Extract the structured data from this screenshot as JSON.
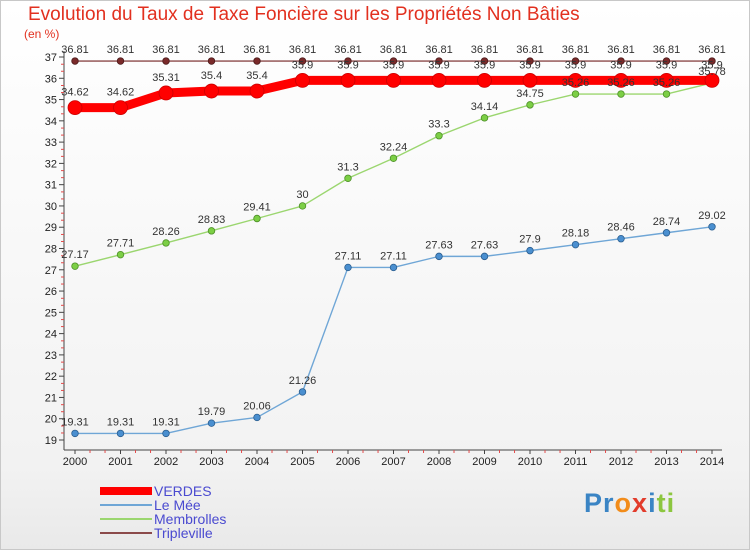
{
  "header": {
    "title": "Evolution du Taux de Taxe Foncière sur les Propriétés Non Bâties",
    "unit": "(en %)"
  },
  "chart_data": {
    "type": "line",
    "title": "Evolution du Taux de Taxe Foncière sur les Propriétés Non Bâties",
    "ylabel": "(en %)",
    "xlabel": "",
    "ylim": [
      19,
      37
    ],
    "yticks": [
      19,
      20,
      21,
      22,
      23,
      24,
      25,
      26,
      27,
      28,
      29,
      30,
      31,
      32,
      33,
      34,
      35,
      36,
      37
    ],
    "categories": [
      "2000",
      "2001",
      "2002",
      "2003",
      "2004",
      "2005",
      "2006",
      "2007",
      "2008",
      "2009",
      "2010",
      "2011",
      "2012",
      "2013",
      "2014"
    ],
    "grid": false,
    "legend": "bottom-left",
    "series": [
      {
        "name": "VERDES",
        "color": "#ff0000",
        "values": [
          34.62,
          34.62,
          35.31,
          35.4,
          35.4,
          35.9,
          35.9,
          35.9,
          35.9,
          35.9,
          35.9,
          35.9,
          35.9,
          35.9,
          35.9
        ],
        "labels": [
          "34.62",
          "34.62",
          "35.31",
          "35.4",
          "35.4",
          "35.9",
          "35.9",
          "35.9",
          "35.9",
          "35.9",
          "35.9",
          "35.9",
          "35.9",
          "35.9",
          "35.9"
        ]
      },
      {
        "name": "Le Mée",
        "color": "#6fa6d6",
        "values": [
          19.31,
          19.31,
          19.31,
          19.79,
          20.06,
          21.26,
          27.11,
          27.11,
          27.63,
          27.63,
          27.9,
          28.18,
          28.46,
          28.74,
          29.02
        ],
        "labels": [
          "19.31",
          "19.31",
          "19.31",
          "19.79",
          "20.06",
          "21.26",
          "27.11",
          "27.11",
          "27.63",
          "27.63",
          "27.9",
          "28.18",
          "28.46",
          "28.74",
          "29.02"
        ]
      },
      {
        "name": "Membrolles",
        "color": "#9bd66f",
        "values": [
          27.17,
          27.71,
          28.26,
          28.83,
          29.41,
          30,
          31.3,
          32.24,
          33.3,
          34.14,
          34.75,
          35.26,
          35.26,
          35.26,
          35.78
        ],
        "labels": [
          "27.17",
          "27.71",
          "28.26",
          "28.83",
          "29.41",
          "30",
          "31.3",
          "32.24",
          "33.3",
          "34.14",
          "34.75",
          "35.26",
          "35.26",
          "35.26",
          "35.78"
        ]
      },
      {
        "name": "Tripleville",
        "color": "#8b4a4a",
        "values": [
          36.81,
          36.81,
          36.81,
          36.81,
          36.81,
          36.81,
          36.81,
          36.81,
          36.81,
          36.81,
          36.81,
          36.81,
          36.81,
          36.81,
          36.81
        ],
        "labels": [
          "36.81",
          "36.81",
          "36.81",
          "36.81",
          "36.81",
          "36.81",
          "36.81",
          "36.81",
          "36.81",
          "36.81",
          "36.81",
          "36.81",
          "36.81",
          "36.81",
          "36.81"
        ]
      }
    ]
  },
  "logo": {
    "parts": [
      "Pr",
      "o",
      "x",
      "i",
      "ti"
    ],
    "colors": [
      "#3a84c4",
      "#f28c1a",
      "#e23b2b",
      "#3a84c4",
      "#8cc63f"
    ]
  }
}
